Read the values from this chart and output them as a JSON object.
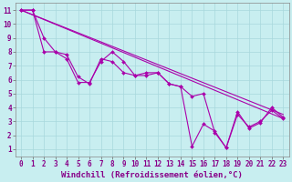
{
  "xlabel": "Windchill (Refroidissement éolien,°C)",
  "bg_color": "#c8eef0",
  "grid_color": "#a8d8dc",
  "line_color": "#aa00aa",
  "xlim_min": -0.5,
  "xlim_max": 23.5,
  "ylim_min": 0.5,
  "ylim_max": 11.5,
  "xticks": [
    0,
    1,
    2,
    3,
    4,
    5,
    6,
    7,
    8,
    9,
    10,
    11,
    12,
    13,
    14,
    15,
    16,
    17,
    18,
    19,
    20,
    21,
    22,
    23
  ],
  "yticks": [
    1,
    2,
    3,
    4,
    5,
    6,
    7,
    8,
    9,
    10,
    11
  ],
  "line1_x": [
    0,
    1,
    2,
    3,
    4,
    5,
    6,
    7,
    8,
    9,
    10,
    11,
    12,
    13,
    14,
    15,
    16,
    17,
    18,
    19,
    20,
    21,
    22,
    23
  ],
  "line1_y": [
    11,
    11,
    9.0,
    8.0,
    7.8,
    6.2,
    5.7,
    7.5,
    7.3,
    6.5,
    6.3,
    6.5,
    6.5,
    5.7,
    5.5,
    4.8,
    5.0,
    2.2,
    1.1,
    3.7,
    2.5,
    2.9,
    4.0,
    3.3
  ],
  "line2_x": [
    0,
    1,
    2,
    3,
    4,
    5,
    6,
    7,
    8,
    9,
    10,
    11,
    12,
    13,
    14,
    15,
    16,
    17,
    18,
    19,
    20,
    21,
    22,
    23
  ],
  "line2_y": [
    11,
    11,
    8.0,
    8.0,
    7.5,
    5.8,
    5.8,
    7.3,
    8.0,
    7.3,
    6.3,
    6.3,
    6.5,
    5.7,
    5.5,
    1.2,
    2.8,
    2.3,
    1.1,
    3.5,
    2.6,
    3.0,
    3.8,
    3.2
  ],
  "line3_x": [
    0,
    23
  ],
  "line3_y": [
    11,
    3.5
  ],
  "line4_x": [
    0,
    23
  ],
  "line4_y": [
    11,
    3.2
  ],
  "tick_fontsize": 5.5,
  "xlabel_fontsize": 6.5,
  "lw": 0.8,
  "ms": 2.0
}
